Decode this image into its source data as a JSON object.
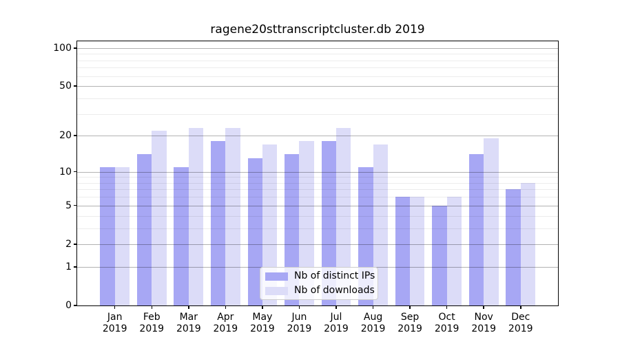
{
  "chart_data": {
    "type": "bar",
    "title": "ragene20sttranscriptcluster.db 2019",
    "categories": [
      "Jan",
      "Feb",
      "Mar",
      "Apr",
      "May",
      "Jun",
      "Jul",
      "Aug",
      "Sep",
      "Oct",
      "Nov",
      "Dec"
    ],
    "year": "2019",
    "series": [
      {
        "name": "Nb of distinct IPs",
        "color": "#a7a7f4",
        "values": [
          11,
          14,
          11,
          18,
          13,
          14,
          18,
          11,
          6,
          5,
          14,
          7
        ]
      },
      {
        "name": "Nb of downloads",
        "color": "#dcdcf8",
        "values": [
          11,
          22,
          23,
          23,
          17,
          18,
          23,
          17,
          6,
          6,
          19,
          8
        ]
      }
    ],
    "yscale": "log10(value+1)",
    "ylim": [
      0,
      113
    ],
    "y_major_ticks": [
      0,
      1,
      2,
      5,
      10,
      20,
      50,
      100
    ],
    "y_minor_ticks": [
      3,
      4,
      6,
      7,
      8,
      9,
      30,
      40,
      60,
      70,
      80,
      90
    ],
    "grid": true,
    "grid_major_color": "rgba(0,0,0,0.30)",
    "grid_minor_color": "rgba(0,0,0,0.075)",
    "legend_position": "lower center"
  }
}
